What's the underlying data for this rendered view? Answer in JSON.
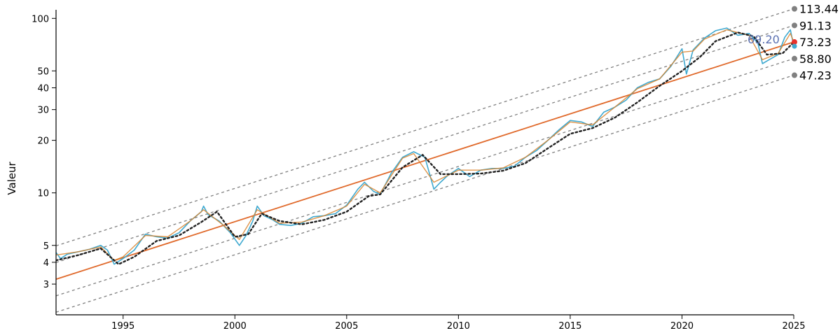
{
  "chart_data": {
    "type": "line",
    "title": "",
    "ylabel": "Valeur",
    "xlabel": "",
    "yscale": "log",
    "xlim": [
      1992.0,
      2025.0
    ],
    "ylim": [
      2.0,
      112.0
    ],
    "x_ticks": [
      "1995",
      "2000",
      "2005",
      "2010",
      "2015",
      "2020",
      "2025"
    ],
    "y_ticks": [
      "3",
      "4",
      "5",
      "10",
      "20",
      "30",
      "40",
      "50",
      "100"
    ],
    "price_series": {
      "color": "#3fa9d0",
      "points": [
        [
          1992.0,
          4.55
        ],
        [
          1992.2,
          4.2
        ],
        [
          1992.5,
          4.45
        ],
        [
          1993.0,
          4.6
        ],
        [
          1993.5,
          4.75
        ],
        [
          1994.0,
          5.0
        ],
        [
          1994.3,
          4.7
        ],
        [
          1994.6,
          3.9
        ],
        [
          1995.0,
          4.2
        ],
        [
          1995.5,
          4.7
        ],
        [
          1996.0,
          5.8
        ],
        [
          1996.5,
          5.6
        ],
        [
          1997.0,
          5.5
        ],
        [
          1997.5,
          5.9
        ],
        [
          1998.0,
          6.9
        ],
        [
          1998.5,
          7.8
        ],
        [
          1998.6,
          8.4
        ],
        [
          1998.8,
          7.5
        ],
        [
          1999.3,
          6.9
        ],
        [
          1999.8,
          5.9
        ],
        [
          2000.2,
          5.0
        ],
        [
          2000.5,
          5.7
        ],
        [
          2000.8,
          6.9
        ],
        [
          2001.0,
          8.4
        ],
        [
          2001.3,
          7.4
        ],
        [
          2001.7,
          7.0
        ],
        [
          2002.0,
          6.6
        ],
        [
          2002.5,
          6.5
        ],
        [
          2003.0,
          6.7
        ],
        [
          2003.5,
          7.3
        ],
        [
          2004.0,
          7.4
        ],
        [
          2004.5,
          7.6
        ],
        [
          2005.0,
          8.5
        ],
        [
          2005.5,
          10.5
        ],
        [
          2005.8,
          11.5
        ],
        [
          2006.2,
          10.2
        ],
        [
          2006.5,
          9.8
        ],
        [
          2007.0,
          13.0
        ],
        [
          2007.5,
          16.0
        ],
        [
          2008.0,
          17.2
        ],
        [
          2008.5,
          16.0
        ],
        [
          2008.9,
          10.5
        ],
        [
          2009.2,
          11.5
        ],
        [
          2009.5,
          12.5
        ],
        [
          2010.0,
          13.8
        ],
        [
          2010.5,
          12.4
        ],
        [
          2011.0,
          13.5
        ],
        [
          2011.5,
          13.8
        ],
        [
          2012.0,
          13.8
        ],
        [
          2012.5,
          14.2
        ],
        [
          2013.0,
          16.0
        ],
        [
          2013.5,
          17.5
        ],
        [
          2014.0,
          20.0
        ],
        [
          2014.5,
          23.0
        ],
        [
          2015.0,
          26.0
        ],
        [
          2015.5,
          25.5
        ],
        [
          2016.0,
          24.0
        ],
        [
          2016.5,
          29.0
        ],
        [
          2017.0,
          31.0
        ],
        [
          2017.5,
          34.0
        ],
        [
          2018.0,
          40.0
        ],
        [
          2018.5,
          43.0
        ],
        [
          2019.0,
          45.0
        ],
        [
          2019.5,
          53.0
        ],
        [
          2020.0,
          67.0
        ],
        [
          2020.2,
          48.0
        ],
        [
          2020.5,
          66.0
        ],
        [
          2021.0,
          77.0
        ],
        [
          2021.5,
          85.0
        ],
        [
          2022.0,
          88.0
        ],
        [
          2022.5,
          80.0
        ],
        [
          2023.0,
          82.0
        ],
        [
          2023.4,
          72.0
        ],
        [
          2023.6,
          55.0
        ],
        [
          2023.9,
          58.0
        ],
        [
          2024.3,
          62.0
        ],
        [
          2024.6,
          78.0
        ],
        [
          2024.85,
          86.0
        ],
        [
          2025.0,
          69.2
        ]
      ]
    },
    "smoothed_series": {
      "color": "#d9822b",
      "points": [
        [
          1992.0,
          4.4
        ],
        [
          1993.0,
          4.6
        ],
        [
          1994.0,
          4.9
        ],
        [
          1994.6,
          4.1
        ],
        [
          1995.0,
          4.3
        ],
        [
          1996.0,
          5.7
        ],
        [
          1997.0,
          5.6
        ],
        [
          1998.0,
          6.9
        ],
        [
          1998.6,
          8.0
        ],
        [
          1999.5,
          6.5
        ],
        [
          2000.2,
          5.4
        ],
        [
          2001.0,
          8.0
        ],
        [
          2002.0,
          6.7
        ],
        [
          2003.0,
          6.8
        ],
        [
          2004.0,
          7.4
        ],
        [
          2005.0,
          8.4
        ],
        [
          2005.8,
          11.2
        ],
        [
          2006.5,
          10.0
        ],
        [
          2007.5,
          15.8
        ],
        [
          2008.0,
          16.8
        ],
        [
          2008.9,
          11.5
        ],
        [
          2010.0,
          13.5
        ],
        [
          2011.0,
          13.5
        ],
        [
          2012.0,
          13.9
        ],
        [
          2013.0,
          16.0
        ],
        [
          2014.0,
          20.0
        ],
        [
          2015.0,
          25.5
        ],
        [
          2016.0,
          24.5
        ],
        [
          2017.0,
          31.0
        ],
        [
          2018.0,
          39.5
        ],
        [
          2019.0,
          45.0
        ],
        [
          2020.0,
          64.0
        ],
        [
          2020.5,
          65.0
        ],
        [
          2021.0,
          76.0
        ],
        [
          2022.0,
          86.0
        ],
        [
          2023.0,
          80.0
        ],
        [
          2023.6,
          58.0
        ],
        [
          2024.3,
          63.0
        ],
        [
          2024.85,
          82.0
        ],
        [
          2025.0,
          73.23
        ]
      ]
    },
    "trend_line": {
      "color": "#e06a2c",
      "points": [
        [
          1992.0,
          3.2
        ],
        [
          2025.0,
          73.23
        ]
      ]
    },
    "moving_average": {
      "color": "#222222",
      "points": [
        [
          1992.0,
          4.1
        ],
        [
          1993.0,
          4.4
        ],
        [
          1994.0,
          4.8
        ],
        [
          1994.8,
          3.9
        ],
        [
          1995.5,
          4.3
        ],
        [
          1996.5,
          5.3
        ],
        [
          1997.5,
          5.7
        ],
        [
          1998.5,
          6.8
        ],
        [
          1999.2,
          7.8
        ],
        [
          2000.0,
          5.6
        ],
        [
          2000.6,
          5.8
        ],
        [
          2001.2,
          7.6
        ],
        [
          2002.0,
          6.9
        ],
        [
          2003.0,
          6.6
        ],
        [
          2004.0,
          7.0
        ],
        [
          2005.0,
          7.8
        ],
        [
          2006.0,
          9.6
        ],
        [
          2006.5,
          9.8
        ],
        [
          2007.5,
          14.0
        ],
        [
          2008.4,
          16.5
        ],
        [
          2009.2,
          12.8
        ],
        [
          2010.0,
          12.8
        ],
        [
          2011.0,
          12.9
        ],
        [
          2012.0,
          13.4
        ],
        [
          2013.0,
          14.8
        ],
        [
          2014.0,
          18.0
        ],
        [
          2015.0,
          21.8
        ],
        [
          2016.0,
          23.5
        ],
        [
          2017.0,
          27.0
        ],
        [
          2018.0,
          33.0
        ],
        [
          2019.0,
          41.0
        ],
        [
          2020.0,
          50.0
        ],
        [
          2020.8,
          60.0
        ],
        [
          2021.5,
          74.0
        ],
        [
          2022.5,
          83.0
        ],
        [
          2023.2,
          79.0
        ],
        [
          2023.8,
          62.0
        ],
        [
          2024.5,
          63.0
        ],
        [
          2025.0,
          73.0
        ]
      ]
    },
    "channel_bands": [
      {
        "label": "113.44",
        "start": 4.97,
        "end": 113.44,
        "marker_color": "#808080"
      },
      {
        "label": "91.13",
        "start": 3.99,
        "end": 91.13,
        "marker_color": "#808080"
      },
      {
        "label": "73.23",
        "start": 3.2,
        "end": 73.23,
        "marker_color": "#e8322c"
      },
      {
        "label": "58.80",
        "start": 2.57,
        "end": 58.8,
        "marker_color": "#808080"
      },
      {
        "label": "47.23",
        "start": 2.07,
        "end": 47.23,
        "marker_color": "#808080"
      }
    ],
    "last_price": {
      "label": "69.20",
      "value": 69.2,
      "marker_color": "#3fa9d0"
    }
  }
}
